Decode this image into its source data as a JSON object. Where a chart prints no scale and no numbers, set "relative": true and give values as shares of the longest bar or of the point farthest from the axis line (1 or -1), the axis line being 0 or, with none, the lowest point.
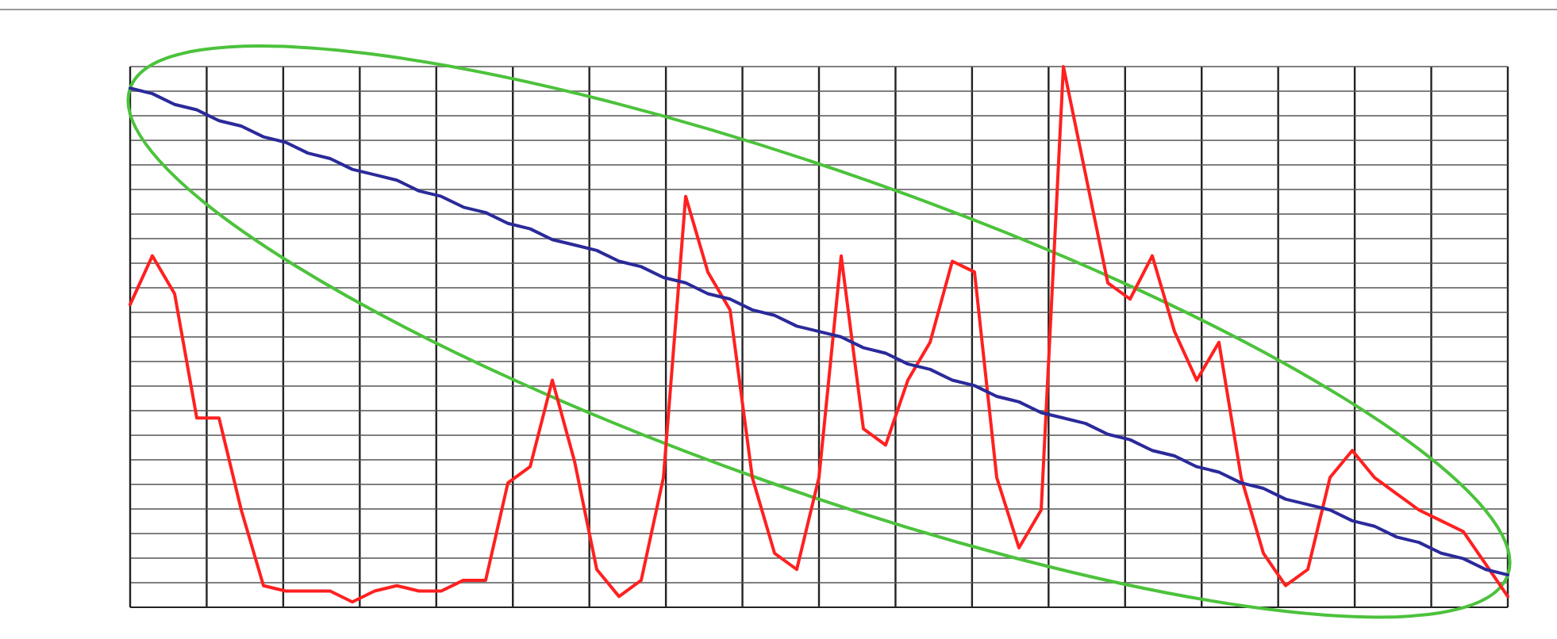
{
  "chart_data": {
    "type": "line",
    "relative": true,
    "grid": true,
    "marker": "none",
    "line_style": "solid",
    "categories": [
      null,
      null,
      null,
      null,
      null,
      null,
      null,
      null,
      null,
      null,
      null,
      null,
      null,
      null,
      null,
      null,
      null,
      null,
      null,
      null,
      null,
      null,
      null,
      null,
      null,
      null,
      null,
      null,
      null,
      null,
      null,
      null,
      null,
      null,
      null,
      null,
      null,
      null,
      null,
      null,
      null,
      null,
      null,
      null,
      null,
      null,
      null,
      null,
      null,
      null,
      null,
      null,
      null,
      null,
      null,
      null,
      null,
      null,
      null,
      null,
      null,
      null,
      null
    ],
    "series": [
      {
        "color": "#ff2020",
        "values": [
          0.56,
          0.65,
          0.58,
          0.35,
          0.35,
          0.18,
          0.04,
          0.03,
          0.03,
          0.03,
          0.01,
          0.03,
          0.04,
          0.03,
          0.03,
          0.05,
          0.05,
          0.23,
          0.26,
          0.42,
          0.27,
          0.07,
          0.02,
          0.05,
          0.24,
          0.76,
          0.62,
          0.55,
          0.24,
          0.1,
          0.07,
          0.24,
          0.65,
          0.33,
          0.3,
          0.42,
          0.49,
          0.64,
          0.62,
          0.24,
          0.11,
          0.18,
          1.0,
          0.8,
          0.6,
          0.57,
          0.65,
          0.51,
          0.42,
          0.49,
          0.24,
          0.1,
          0.04,
          0.07,
          0.24,
          0.29,
          0.24,
          0.21,
          0.18,
          0.16,
          0.14,
          0.08,
          0.02
        ]
      },
      {
        "color": "#2a2a9a",
        "values": [
          0.96,
          0.95,
          0.93,
          0.92,
          0.9,
          0.89,
          0.87,
          0.86,
          0.84,
          0.83,
          0.81,
          0.8,
          0.79,
          0.77,
          0.76,
          0.74,
          0.73,
          0.71,
          0.7,
          0.68,
          0.67,
          0.66,
          0.64,
          0.63,
          0.61,
          0.6,
          0.58,
          0.57,
          0.55,
          0.54,
          0.52,
          0.51,
          0.5,
          0.48,
          0.47,
          0.45,
          0.44,
          0.42,
          0.41,
          0.39,
          0.38,
          0.36,
          0.35,
          0.34,
          0.32,
          0.31,
          0.29,
          0.28,
          0.26,
          0.25,
          0.23,
          0.22,
          0.2,
          0.19,
          0.18,
          0.16,
          0.15,
          0.13,
          0.12,
          0.1,
          0.09,
          0.07,
          0.06
        ]
      }
    ]
  }
}
